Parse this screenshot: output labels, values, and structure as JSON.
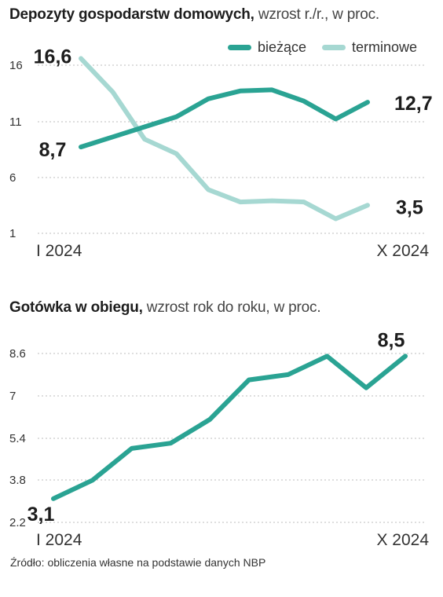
{
  "colors": {
    "biezace": "#2aa393",
    "terminowe": "#a6d8d2",
    "grid": "#bdbdbd",
    "text": "#222222"
  },
  "charts": [
    {
      "title_bold": "Depozyty gospodarstw domowych,",
      "title_rest": " wzrost r./r., w proc.",
      "legend": [
        "bieżące",
        "terminowe"
      ]
    },
    {
      "title_bold": "Gotówka w obiegu,",
      "title_rest": " wzrost rok do roku, w proc."
    }
  ],
  "source": "Źródło: obliczenia własne na podstawie danych NBP",
  "chart_data": [
    {
      "type": "line",
      "x_start_label": "I 2024",
      "x_end_label": "X 2024",
      "y_ticks": [
        "16",
        "11",
        "6",
        "1"
      ],
      "ylim": [
        1,
        17.5
      ],
      "grid": true,
      "legend_position": "top-right",
      "series": [
        {
          "name": "bieżące",
          "values": [
            8.7,
            9.6,
            10.5,
            11.4,
            13.0,
            13.7,
            13.8,
            12.8,
            11.2,
            12.7
          ],
          "start_label": "8,7",
          "end_label": "12,7"
        },
        {
          "name": "terminowe",
          "values": [
            16.6,
            13.6,
            9.4,
            8.1,
            4.9,
            3.8,
            3.9,
            3.8,
            2.3,
            3.5
          ],
          "start_label": "16,6",
          "end_label": "3,5"
        }
      ]
    },
    {
      "type": "line",
      "x_start_label": "I 2024",
      "x_end_label": "X 2024",
      "y_ticks": [
        "8.6",
        "7",
        "5.4",
        "3.8",
        "2.2"
      ],
      "ylim": [
        2.2,
        9.3
      ],
      "grid": true,
      "series": [
        {
          "values": [
            3.1,
            3.8,
            5.0,
            5.2,
            6.1,
            7.6,
            7.8,
            8.5,
            7.3,
            8.5
          ],
          "start_label": "3,1",
          "end_label": "8,5"
        }
      ]
    }
  ]
}
